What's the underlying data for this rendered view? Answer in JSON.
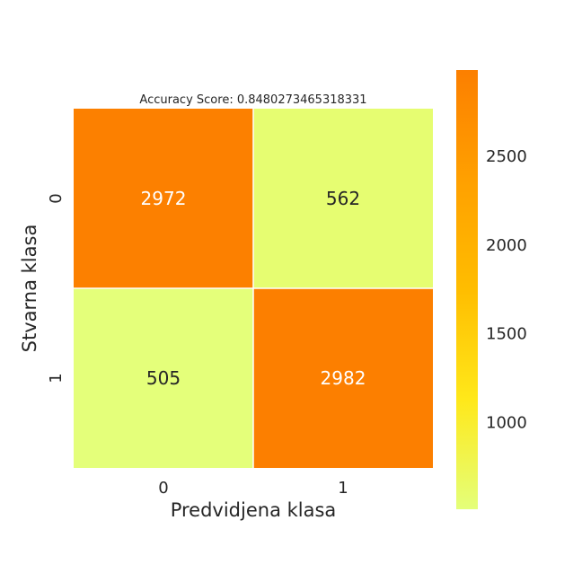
{
  "chart_data": {
    "type": "heatmap",
    "title": "Accuracy Score: 0.8480273465318331",
    "xlabel": "Predvidjena klasa",
    "ylabel": "Stvarna klasa",
    "x_categories": [
      "0",
      "1"
    ],
    "y_categories": [
      "0",
      "1"
    ],
    "matrix": [
      [
        2972,
        562
      ],
      [
        505,
        2982
      ]
    ],
    "colorbar": {
      "ticks": [
        1000,
        1500,
        2000,
        2500
      ],
      "tick_labels": [
        "1000",
        "1500",
        "2000",
        "2500"
      ],
      "vmin": 505,
      "vmax": 2982,
      "colormap": "Wistia",
      "colors": [
        "#e4ff7a",
        "#ffe81a",
        "#ffbd00",
        "#ffa000",
        "#fc7f00"
      ]
    },
    "annotation_colors": {
      "dark": "#262626",
      "light": "#ffffff"
    },
    "grid": false
  }
}
